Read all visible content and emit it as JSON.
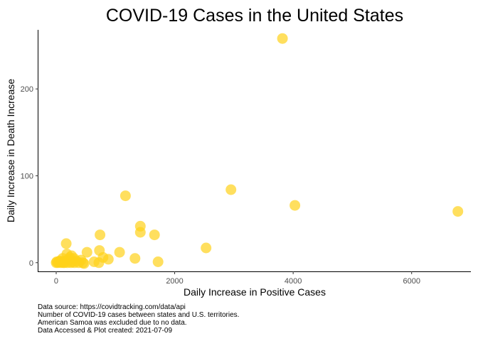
{
  "chart_data": {
    "type": "scatter",
    "title": "COVID-19 Cases in the United States",
    "xlabel": "Daily Increase in Positive Cases",
    "ylabel": "Daily Increase in Death Increase",
    "xlim": [
      -300,
      7000
    ],
    "ylim": [
      -10,
      268
    ],
    "x_ticks": [
      0,
      2000,
      4000,
      6000
    ],
    "x_tick_labels": [
      "0",
      "2000",
      "4000",
      "6000"
    ],
    "y_ticks": [
      0,
      100,
      200
    ],
    "y_tick_labels": [
      "0",
      "100",
      "200"
    ],
    "grid": false,
    "legend": "none",
    "point_color": "#FFD11A",
    "point_opacity": 0.7,
    "points": [
      {
        "x": 3820,
        "y": 258
      },
      {
        "x": 2950,
        "y": 84
      },
      {
        "x": 1170,
        "y": 77
      },
      {
        "x": 4030,
        "y": 66
      },
      {
        "x": 6780,
        "y": 59
      },
      {
        "x": 1420,
        "y": 42
      },
      {
        "x": 1420,
        "y": 35
      },
      {
        "x": 740,
        "y": 32
      },
      {
        "x": 1660,
        "y": 32
      },
      {
        "x": 170,
        "y": 22
      },
      {
        "x": 2530,
        "y": 17
      },
      {
        "x": 730,
        "y": 14
      },
      {
        "x": 520,
        "y": 12
      },
      {
        "x": 1070,
        "y": 12
      },
      {
        "x": 180,
        "y": 10
      },
      {
        "x": 260,
        "y": 8
      },
      {
        "x": 110,
        "y": 5
      },
      {
        "x": 300,
        "y": 5
      },
      {
        "x": 880,
        "y": 4
      },
      {
        "x": 790,
        "y": 6
      },
      {
        "x": 1330,
        "y": 5
      },
      {
        "x": 220,
        "y": 4
      },
      {
        "x": 420,
        "y": 3
      },
      {
        "x": 60,
        "y": 2
      },
      {
        "x": 150,
        "y": 2
      },
      {
        "x": 340,
        "y": 2
      },
      {
        "x": 640,
        "y": 1
      },
      {
        "x": 1720,
        "y": 1
      },
      {
        "x": 0,
        "y": 0
      },
      {
        "x": 30,
        "y": 0
      },
      {
        "x": 80,
        "y": 0
      },
      {
        "x": 120,
        "y": 0
      },
      {
        "x": 190,
        "y": 0
      },
      {
        "x": 250,
        "y": 0
      },
      {
        "x": 310,
        "y": 0
      },
      {
        "x": 380,
        "y": 0
      },
      {
        "x": 450,
        "y": 0
      },
      {
        "x": 720,
        "y": 0
      },
      {
        "x": 10,
        "y": 1
      },
      {
        "x": 45,
        "y": 1
      },
      {
        "x": 95,
        "y": 1
      },
      {
        "x": 140,
        "y": 0
      },
      {
        "x": 270,
        "y": 1
      },
      {
        "x": 470,
        "y": -1
      },
      {
        "x": 230,
        "y": 6
      }
    ]
  },
  "caption_lines": [
    "Data source: https://covidtracking.com/data/api",
    "Number of COVID-19 cases between states and U.S. territories.",
    "American Samoa was excluded due to no data.",
    "Data Accessed & Plot created: 2021-07-09"
  ]
}
